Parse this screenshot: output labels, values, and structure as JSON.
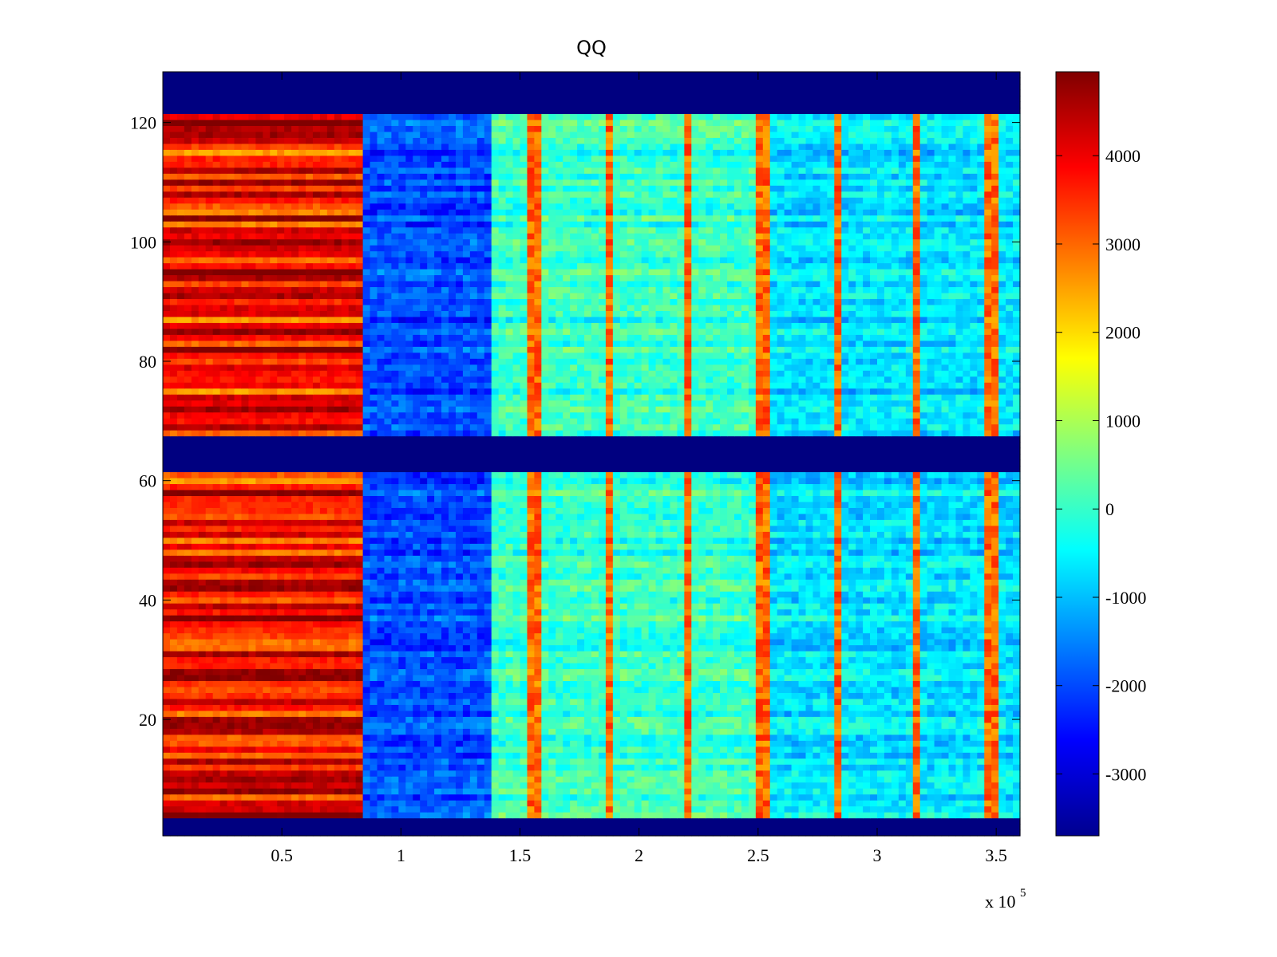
{
  "chart_data": {
    "type": "heatmap",
    "title": "QQ",
    "xlabel": "",
    "ylabel": "",
    "x_multiplier_label": "x 10",
    "x_multiplier_exponent": "5",
    "xlim": [
      0,
      3.6
    ],
    "ylim": [
      0.5,
      128.5
    ],
    "xticks": [
      0.5,
      1,
      1.5,
      2,
      2.5,
      3,
      3.5
    ],
    "xtick_labels": [
      "0.5",
      "1",
      "1.5",
      "2",
      "2.5",
      "3",
      "3.5"
    ],
    "yticks": [
      20,
      40,
      60,
      80,
      100,
      120
    ],
    "ytick_labels": [
      "20",
      "40",
      "60",
      "80",
      "100",
      "120"
    ],
    "colormap": "jet",
    "clim": [
      -3700,
      4950
    ],
    "colorbar": {
      "ticks": [
        4000,
        3000,
        2000,
        1000,
        0,
        -1000,
        -2000,
        -3000
      ],
      "tick_labels": [
        "4000",
        "3000",
        "2000",
        "1000",
        "0",
        "-1000",
        "-2000",
        "-3000"
      ]
    },
    "empty_row_bands": [
      [
        1,
        3
      ],
      [
        62,
        67
      ],
      [
        122,
        128
      ]
    ],
    "regions": [
      {
        "x_range": [
          0,
          0.83
        ],
        "typical_value": 3800,
        "description_level": "high"
      },
      {
        "x_range": [
          0.83,
          1.38
        ],
        "typical_value": -2000,
        "description_level": "low"
      },
      {
        "x_range": [
          1.38,
          2.55
        ],
        "typical_value": 0,
        "description_level": "mid"
      },
      {
        "x_range": [
          2.55,
          3.6
        ],
        "typical_value": -700,
        "description_level": "mid-low"
      }
    ],
    "vertical_streaks_x": [
      1.56,
      1.88,
      2.2,
      2.52,
      2.84,
      3.16,
      3.48
    ]
  }
}
